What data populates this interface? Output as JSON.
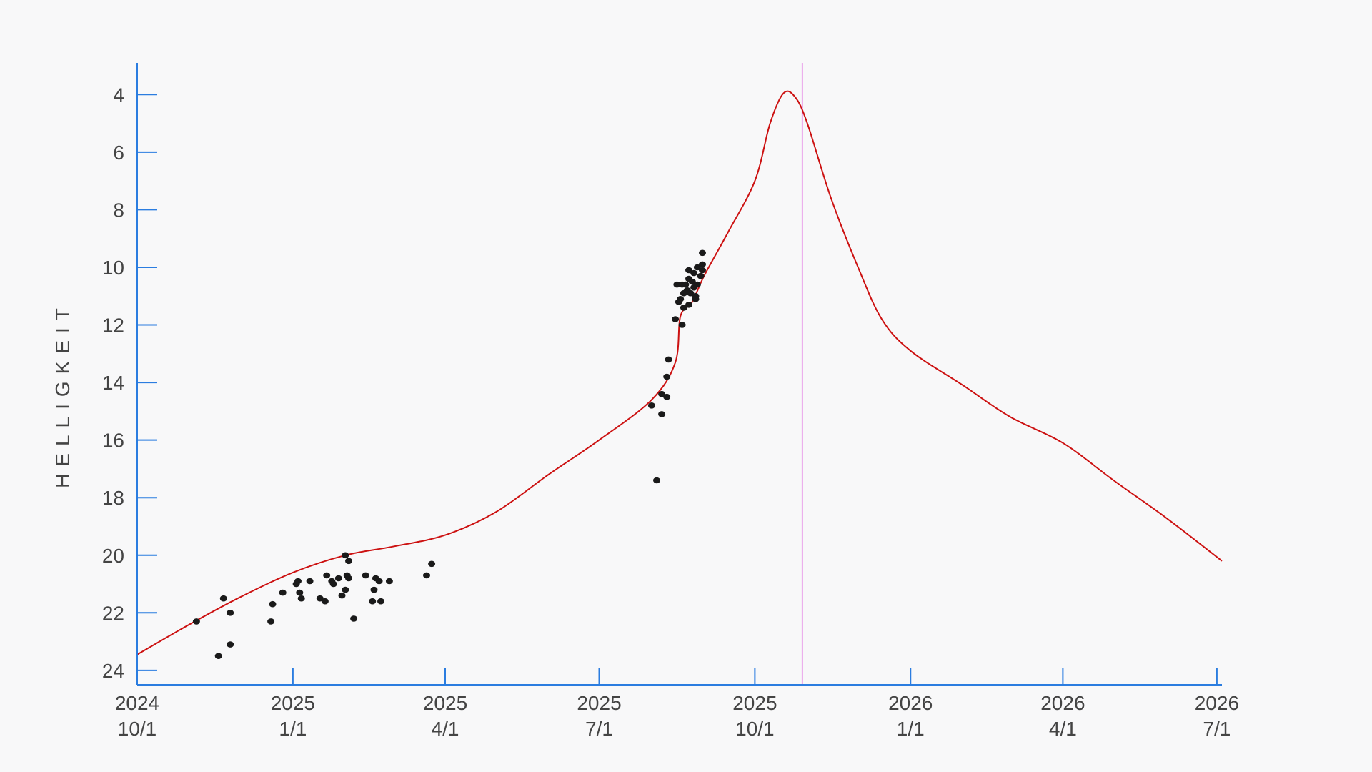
{
  "chart_data": {
    "type": "line",
    "title": "",
    "ylabel": "HELLIGKEIT",
    "xlabel": "",
    "x_range": [
      "2024-10-01",
      "2026-07-04"
    ],
    "ylim": [
      24.5,
      2.9
    ],
    "y_inverted": true,
    "y_ticks": [
      4,
      6,
      8,
      10,
      12,
      14,
      16,
      18,
      20,
      22,
      24
    ],
    "x_ticks": [
      {
        "date": "2024-10-01",
        "line1": "2024",
        "line2": "10/1"
      },
      {
        "date": "2025-01-01",
        "line1": "2025",
        "line2": "1/1"
      },
      {
        "date": "2025-04-01",
        "line1": "2025",
        "line2": "4/1"
      },
      {
        "date": "2025-07-01",
        "line1": "2025",
        "line2": "7/1"
      },
      {
        "date": "2025-10-01",
        "line1": "2025",
        "line2": "10/1"
      },
      {
        "date": "2026-01-01",
        "line1": "2026",
        "line2": "1/1"
      },
      {
        "date": "2026-04-01",
        "line1": "2026",
        "line2": "4/1"
      },
      {
        "date": "2026-07-01",
        "line1": "2026",
        "line2": "7/1"
      }
    ],
    "marker_date": "2025-10-29",
    "grid": false,
    "colors": {
      "curve": "#cc1111",
      "points": "#1a1a1a",
      "axis": "#2b7de0",
      "marker": "#dd55dd"
    },
    "series": [
      {
        "kind": "line",
        "points": [
          [
            "2024-10-01",
            23.45
          ],
          [
            "2024-11-01",
            22.4
          ],
          [
            "2024-12-01",
            21.45
          ],
          [
            "2025-01-01",
            20.6
          ],
          [
            "2025-02-01",
            20.0
          ],
          [
            "2025-03-01",
            19.7
          ],
          [
            "2025-04-01",
            19.3
          ],
          [
            "2025-05-01",
            18.5
          ],
          [
            "2025-06-01",
            17.2
          ],
          [
            "2025-07-01",
            16.0
          ],
          [
            "2025-08-01",
            14.6
          ],
          [
            "2025-08-15",
            13.3
          ],
          [
            "2025-08-18",
            11.7
          ],
          [
            "2025-08-25",
            11.2
          ],
          [
            "2025-09-01",
            10.3
          ],
          [
            "2025-09-15",
            8.8
          ],
          [
            "2025-10-01",
            7.0
          ],
          [
            "2025-10-10",
            5.0
          ],
          [
            "2025-10-18",
            3.95
          ],
          [
            "2025-10-25",
            4.1
          ],
          [
            "2025-11-01",
            5.0
          ],
          [
            "2025-11-15",
            7.6
          ],
          [
            "2025-12-01",
            10.0
          ],
          [
            "2025-12-15",
            11.8
          ],
          [
            "2026-01-01",
            12.9
          ],
          [
            "2026-02-01",
            14.1
          ],
          [
            "2026-03-01",
            15.2
          ],
          [
            "2026-04-01",
            16.1
          ],
          [
            "2026-05-01",
            17.4
          ],
          [
            "2026-06-01",
            18.7
          ],
          [
            "2026-07-04",
            20.2
          ]
        ]
      },
      {
        "kind": "scatter",
        "points": [
          [
            "2024-11-05",
            22.3
          ],
          [
            "2024-11-18",
            23.5
          ],
          [
            "2024-11-21",
            21.5
          ],
          [
            "2024-11-25",
            22.0
          ],
          [
            "2024-11-25",
            23.1
          ],
          [
            "2024-12-19",
            22.3
          ],
          [
            "2024-12-20",
            21.7
          ],
          [
            "2024-12-26",
            21.3
          ],
          [
            "2025-01-03",
            21.0
          ],
          [
            "2025-01-04",
            20.9
          ],
          [
            "2025-01-05",
            21.3
          ],
          [
            "2025-01-06",
            21.5
          ],
          [
            "2025-01-11",
            20.9
          ],
          [
            "2025-01-17",
            21.5
          ],
          [
            "2025-01-20",
            21.6
          ],
          [
            "2025-01-21",
            20.7
          ],
          [
            "2025-01-24",
            20.9
          ],
          [
            "2025-01-25",
            21.0
          ],
          [
            "2025-01-28",
            20.8
          ],
          [
            "2025-01-30",
            21.4
          ],
          [
            "2025-02-01",
            21.2
          ],
          [
            "2025-02-01",
            20.0
          ],
          [
            "2025-02-02",
            20.7
          ],
          [
            "2025-02-03",
            20.8
          ],
          [
            "2025-02-03",
            20.2
          ],
          [
            "2025-02-06",
            22.2
          ],
          [
            "2025-02-13",
            20.7
          ],
          [
            "2025-02-17",
            21.6
          ],
          [
            "2025-02-18",
            21.2
          ],
          [
            "2025-02-19",
            20.8
          ],
          [
            "2025-02-21",
            20.9
          ],
          [
            "2025-02-22",
            21.6
          ],
          [
            "2025-02-27",
            20.9
          ],
          [
            "2025-03-21",
            20.7
          ],
          [
            "2025-03-24",
            20.3
          ],
          [
            "2025-08-01",
            14.8
          ],
          [
            "2025-08-04",
            17.4
          ],
          [
            "2025-08-07",
            14.4
          ],
          [
            "2025-08-07",
            15.1
          ],
          [
            "2025-08-10",
            14.5
          ],
          [
            "2025-08-10",
            13.8
          ],
          [
            "2025-08-11",
            13.2
          ],
          [
            "2025-08-15",
            11.8
          ],
          [
            "2025-08-16",
            10.6
          ],
          [
            "2025-08-17",
            11.2
          ],
          [
            "2025-08-18",
            11.1
          ],
          [
            "2025-08-19",
            10.6
          ],
          [
            "2025-08-19",
            12.0
          ],
          [
            "2025-08-20",
            11.4
          ],
          [
            "2025-08-20",
            10.9
          ],
          [
            "2025-08-21",
            10.6
          ],
          [
            "2025-08-22",
            10.8
          ],
          [
            "2025-08-23",
            10.4
          ],
          [
            "2025-08-23",
            10.1
          ],
          [
            "2025-08-23",
            11.3
          ],
          [
            "2025-08-24",
            10.9
          ],
          [
            "2025-08-25",
            10.5
          ],
          [
            "2025-08-26",
            10.2
          ],
          [
            "2025-08-26",
            10.7
          ],
          [
            "2025-08-27",
            11.1
          ],
          [
            "2025-08-27",
            11.0
          ],
          [
            "2025-08-28",
            10.6
          ],
          [
            "2025-08-28",
            10.0
          ],
          [
            "2025-08-30",
            10.3
          ],
          [
            "2025-08-31",
            10.1
          ],
          [
            "2025-08-31",
            9.5
          ],
          [
            "2025-08-31",
            9.9
          ]
        ]
      }
    ]
  }
}
